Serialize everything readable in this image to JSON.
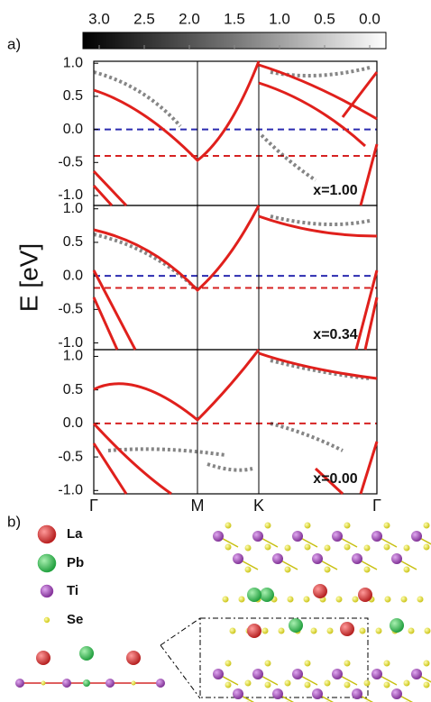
{
  "figure": {
    "label_a": "a)",
    "label_b": "b)",
    "y_axis_label": "E [eV]",
    "colorbar": {
      "lim": [
        3.18,
        -0.18
      ],
      "ticks": [
        {
          "value": 3,
          "label": "3.0"
        },
        2.5,
        {
          "value": 2,
          "label": "2.0"
        },
        1.5,
        {
          "value": 1,
          "label": "1.0"
        },
        0.5,
        {
          "value": 0,
          "label": "0.0"
        }
      ]
    },
    "k_points": [
      "Γ",
      "M",
      "K",
      "Γ"
    ],
    "panels": [
      {
        "annotation": "x=1.00",
        "ylim": [
          -1.15,
          1.03
        ],
        "yticks": [
          {
            "value": 1,
            "label": "1.0"
          },
          0.5,
          {
            "value": 0,
            "label": "0.0"
          },
          -0.5,
          {
            "value": -1,
            "label": "-1.0"
          }
        ],
        "levels": [
          {
            "value": 0,
            "color": "#2b2bb0"
          },
          {
            "value": -0.4,
            "color": "#d62222"
          }
        ]
      },
      {
        "annotation": "x=0.34",
        "ylim": [
          -1.1,
          1.05
        ],
        "yticks": [
          {
            "value": 1,
            "label": "1.0"
          },
          0.5,
          {
            "value": 0,
            "label": "0.0"
          },
          -0.5,
          {
            "value": -1,
            "label": "-1.0"
          }
        ],
        "levels": [
          {
            "value": 0,
            "color": "#2b2bb0"
          },
          {
            "value": -0.18,
            "color": "#d62222"
          }
        ]
      },
      {
        "annotation": "x=0.00",
        "ylim": [
          -1.05,
          1.1
        ],
        "yticks": [
          {
            "value": 1,
            "label": "1.0"
          },
          0.5,
          {
            "value": 0,
            "label": "0.0"
          },
          -0.5,
          {
            "value": -1,
            "label": "-1.0"
          }
        ],
        "levels": [
          {
            "value": 0,
            "color": "#d62222"
          }
        ]
      }
    ],
    "legend": [
      {
        "label": "La",
        "color": "#d42a2a"
      },
      {
        "label": "Pb",
        "color": "#2db34a"
      },
      {
        "label": "Ti",
        "color": "#9a3fb0"
      },
      {
        "label": "Se",
        "color": "#e8e030"
      }
    ]
  }
}
